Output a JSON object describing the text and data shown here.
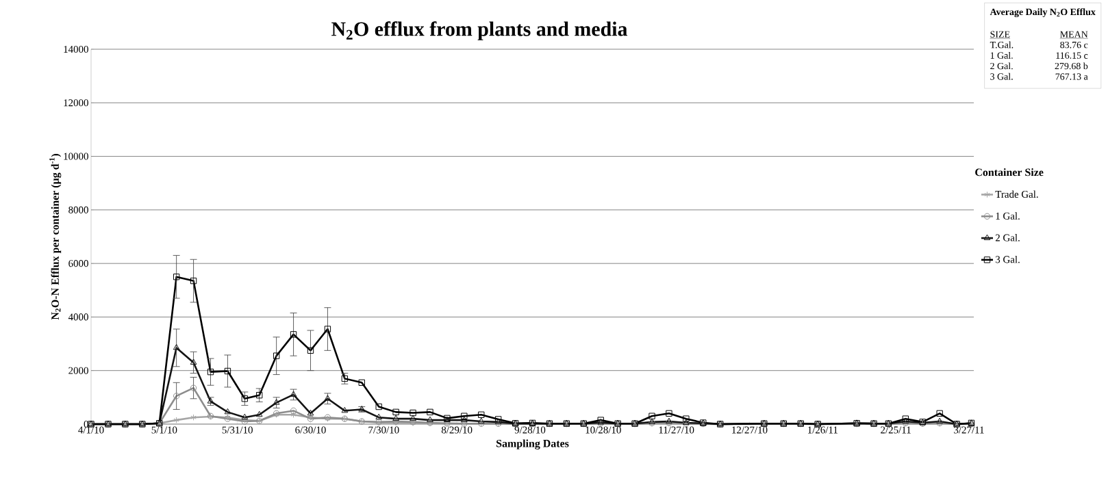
{
  "chart_data": {
    "type": "line",
    "title": "N$_{2}$O efflux from plants and media",
    "xlabel": "Sampling Dates",
    "ylabel": "N$_{2}$O-N Efflux per container (µg d$^{-1}$)",
    "legend_title": "Container Size",
    "x": [
      "2010-04-01",
      "2010-04-08",
      "2010-04-15",
      "2010-04-22",
      "2010-04-29",
      "2010-05-06",
      "2010-05-13",
      "2010-05-20",
      "2010-05-27",
      "2010-06-03",
      "2010-06-09",
      "2010-06-16",
      "2010-06-23",
      "2010-06-30",
      "2010-07-07",
      "2010-07-14",
      "2010-07-21",
      "2010-07-28",
      "2010-08-04",
      "2010-08-11",
      "2010-08-18",
      "2010-08-25",
      "2010-09-01",
      "2010-09-08",
      "2010-09-15",
      "2010-09-22",
      "2010-09-29",
      "2010-10-06",
      "2010-10-13",
      "2010-10-20",
      "2010-10-27",
      "2010-11-03",
      "2010-11-10",
      "2010-11-17",
      "2010-11-24",
      "2010-12-01",
      "2010-12-08",
      "2010-12-15",
      "2011-01-02",
      "2011-01-10",
      "2011-01-17",
      "2011-01-24",
      "2011-02-09",
      "2011-02-16",
      "2011-02-22",
      "2011-03-01",
      "2011-03-08",
      "2011-03-15",
      "2011-03-22",
      "2011-03-28"
    ],
    "series": [
      {
        "name": "Trade Gal.",
        "color": "#a6a6a6",
        "marker": "cross",
        "values": [
          0,
          0,
          0,
          0,
          30,
          150,
          250,
          280,
          250,
          150,
          120,
          350,
          350,
          250,
          200,
          200,
          100,
          60,
          50,
          40,
          30,
          20,
          20,
          20,
          10,
          10,
          10,
          10,
          10,
          10,
          20,
          10,
          10,
          20,
          20,
          10,
          10,
          0,
          10,
          10,
          10,
          0,
          10,
          10,
          10,
          20,
          10,
          20,
          0,
          10
        ]
      },
      {
        "name": "1 Gal.",
        "color": "#8c8c8c",
        "marker": "circle",
        "values": [
          0,
          0,
          0,
          0,
          30,
          1050,
          1350,
          300,
          200,
          100,
          120,
          400,
          500,
          200,
          250,
          200,
          100,
          80,
          100,
          80,
          50,
          30,
          20,
          20,
          20,
          10,
          10,
          10,
          10,
          10,
          30,
          10,
          10,
          40,
          50,
          20,
          10,
          0,
          10,
          10,
          10,
          0,
          10,
          10,
          10,
          40,
          20,
          40,
          0,
          10
        ],
        "errors": [
          null,
          null,
          null,
          null,
          null,
          500,
          400,
          null,
          null,
          null,
          null,
          null,
          null,
          null,
          null,
          null,
          null,
          null,
          null,
          null,
          null,
          null,
          null,
          null,
          null,
          null,
          null,
          null,
          null,
          null,
          null,
          null,
          null,
          null,
          null,
          null,
          null,
          null,
          null,
          null,
          null,
          null,
          null,
          null,
          null,
          null,
          null,
          null,
          null,
          null
        ]
      },
      {
        "name": "2 Gal.",
        "color": "#141414",
        "marker": "triangle",
        "values": [
          0,
          0,
          0,
          0,
          30,
          2850,
          2300,
          850,
          450,
          250,
          350,
          800,
          1100,
          400,
          950,
          500,
          550,
          250,
          200,
          200,
          150,
          150,
          150,
          100,
          80,
          20,
          20,
          20,
          20,
          20,
          60,
          20,
          20,
          80,
          100,
          50,
          30,
          0,
          20,
          20,
          20,
          0,
          30,
          20,
          20,
          100,
          50,
          100,
          0,
          30
        ],
        "errors": [
          null,
          null,
          null,
          null,
          null,
          700,
          400,
          150,
          null,
          null,
          null,
          200,
          200,
          null,
          200,
          null,
          100,
          null,
          null,
          null,
          null,
          null,
          null,
          null,
          null,
          null,
          null,
          null,
          null,
          null,
          null,
          null,
          null,
          null,
          null,
          null,
          null,
          null,
          null,
          null,
          null,
          null,
          null,
          null,
          null,
          null,
          null,
          null,
          null,
          null
        ]
      },
      {
        "name": "3 Gal.",
        "color": "#000000",
        "marker": "square",
        "values": [
          0,
          0,
          0,
          0,
          30,
          5500,
          5350,
          1950,
          1980,
          950,
          1080,
          2550,
          3350,
          2750,
          3550,
          1700,
          1550,
          650,
          450,
          420,
          450,
          220,
          300,
          350,
          180,
          30,
          40,
          20,
          20,
          20,
          150,
          20,
          20,
          300,
          400,
          200,
          50,
          0,
          20,
          20,
          20,
          0,
          30,
          20,
          20,
          200,
          80,
          400,
          0,
          40
        ],
        "errors": [
          null,
          null,
          null,
          null,
          null,
          800,
          800,
          500,
          600,
          250,
          250,
          700,
          800,
          750,
          800,
          200,
          null,
          null,
          null,
          null,
          null,
          null,
          null,
          null,
          null,
          null,
          null,
          null,
          null,
          null,
          null,
          null,
          null,
          null,
          null,
          null,
          null,
          null,
          null,
          null,
          null,
          null,
          null,
          null,
          null,
          null,
          null,
          null,
          null,
          null
        ]
      }
    ],
    "xlim": [
      "2010-04-01",
      "2011-03-29"
    ],
    "xticks": [
      {
        "value": "2010-04-01",
        "label": "4/1/10"
      },
      {
        "value": "2010-05-01",
        "label": "5/1/10"
      },
      {
        "value": "2010-05-31",
        "label": "5/31/10"
      },
      {
        "value": "2010-06-30",
        "label": "6/30/10"
      },
      {
        "value": "2010-07-30",
        "label": "7/30/10"
      },
      {
        "value": "2010-08-29",
        "label": "8/29/10"
      },
      {
        "value": "2010-09-28",
        "label": "9/28/10"
      },
      {
        "value": "2010-10-28",
        "label": "10/28/10"
      },
      {
        "value": "2010-11-27",
        "label": "11/27/10"
      },
      {
        "value": "2010-12-27",
        "label": "12/27/10"
      },
      {
        "value": "2011-01-26",
        "label": "1/26/11"
      },
      {
        "value": "2011-02-25",
        "label": "2/25/11"
      },
      {
        "value": "2011-03-27",
        "label": "3/27/11"
      }
    ],
    "ylim": [
      0,
      14000
    ],
    "yticks": [
      0,
      2000,
      4000,
      6000,
      8000,
      10000,
      12000,
      14000
    ],
    "grid": "y",
    "legend": "right",
    "line_style": "solid",
    "annotations": [
      "Average Daily N$_{2}$O Efflux",
      "SIZE",
      "MEAN",
      "T.Gal.",
      "83.76 c",
      "1 Gal.",
      "116.15 c",
      "2 Gal.",
      "279.68 b",
      "3 Gal.",
      "767.13 a"
    ]
  }
}
